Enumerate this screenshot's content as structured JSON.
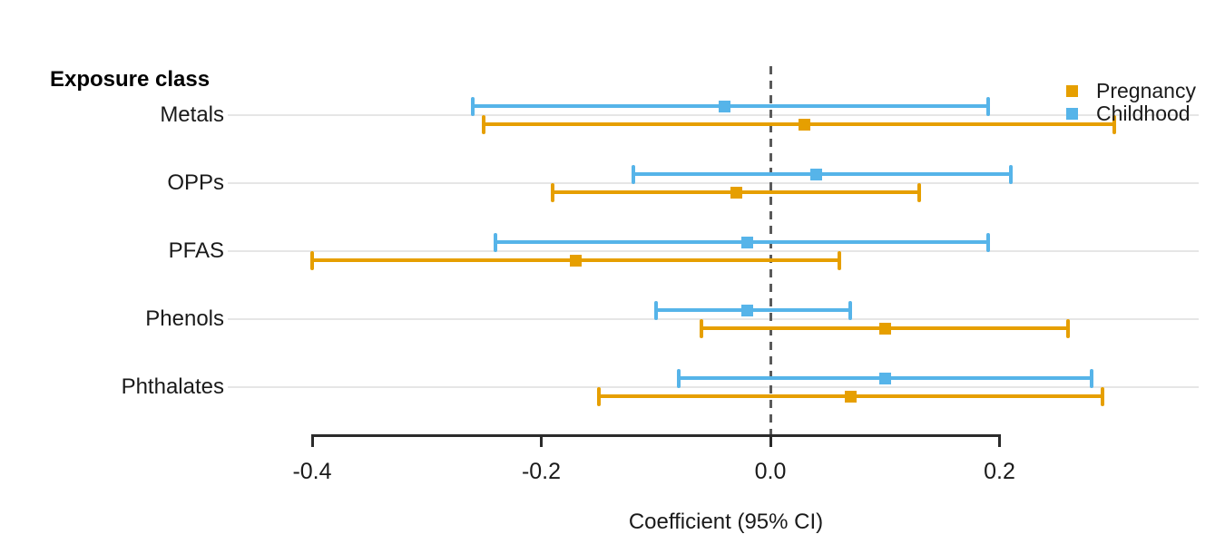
{
  "header": {
    "title": "Exposure class"
  },
  "legend": {
    "items": [
      {
        "label": "Pregnancy",
        "color": "#E69F00"
      },
      {
        "label": "Childhood",
        "color": "#56B4E9"
      }
    ]
  },
  "chart_data": {
    "type": "scatter",
    "variant": "forest-plot-with-95ci-error-bars",
    "title": "",
    "xlabel": "Coefficient (95% CI)",
    "ylabel": "Exposure class",
    "categories": [
      "Metals",
      "OPPs",
      "PFAS",
      "Phenols",
      "Phthalates"
    ],
    "x_ticks": [
      -0.4,
      -0.2,
      0.0,
      0.2
    ],
    "x_tick_labels": [
      "-0.4",
      "-0.2",
      "0.0",
      "0.2"
    ],
    "xlim": [
      -0.4,
      0.2
    ],
    "panel_xlim": [
      -0.47,
      0.37
    ],
    "reference_line_x": 0.0,
    "grid": "horizontal-light",
    "legend_position": "top-right-inside",
    "series": [
      {
        "name": "Pregnancy",
        "color": "#E69F00",
        "row_side": "below",
        "points": [
          {
            "category": "Metals",
            "estimate": 0.03,
            "ci_low": -0.25,
            "ci_high": 0.3
          },
          {
            "category": "OPPs",
            "estimate": -0.03,
            "ci_low": -0.19,
            "ci_high": 0.13
          },
          {
            "category": "PFAS",
            "estimate": -0.17,
            "ci_low": -0.4,
            "ci_high": 0.06
          },
          {
            "category": "Phenols",
            "estimate": 0.1,
            "ci_low": -0.06,
            "ci_high": 0.26
          },
          {
            "category": "Phthalates",
            "estimate": 0.07,
            "ci_low": -0.15,
            "ci_high": 0.29
          }
        ]
      },
      {
        "name": "Childhood",
        "color": "#56B4E9",
        "row_side": "above",
        "points": [
          {
            "category": "Metals",
            "estimate": -0.04,
            "ci_low": -0.26,
            "ci_high": 0.19
          },
          {
            "category": "OPPs",
            "estimate": 0.04,
            "ci_low": -0.12,
            "ci_high": 0.21
          },
          {
            "category": "PFAS",
            "estimate": -0.02,
            "ci_low": -0.24,
            "ci_high": 0.19
          },
          {
            "category": "Phenols",
            "estimate": -0.02,
            "ci_low": -0.1,
            "ci_high": 0.07
          },
          {
            "category": "Phthalates",
            "estimate": 0.1,
            "ci_low": -0.08,
            "ci_high": 0.28
          }
        ]
      }
    ],
    "colors": {
      "grid": "#E6E6E6",
      "axis": "#2B2B2B",
      "reference_line": "#5A5A5A",
      "text": "#1A1A1A"
    }
  }
}
